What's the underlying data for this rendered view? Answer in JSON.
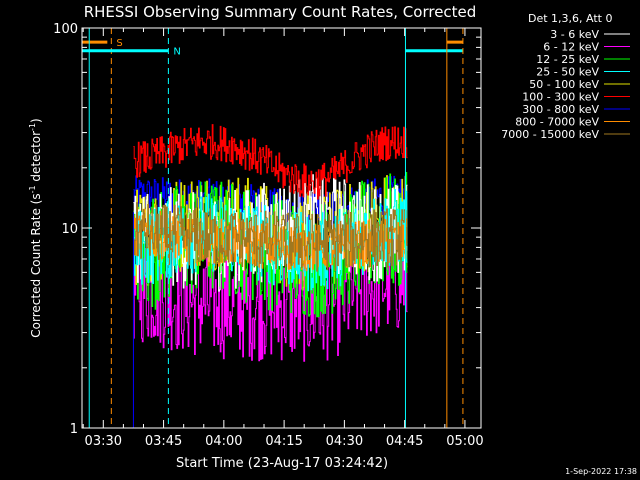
{
  "chart_data": {
    "type": "line",
    "title": "RHESSI Observing Summary Count Rates, Corrected",
    "xlabel": "Start Time (23-Aug-17 03:24:42)",
    "ylabel_main": "Corrected Count Rate (s",
    "ylabel_sup1": "-1",
    "ylabel_mid": " detector",
    "ylabel_sup2": "-1",
    "ylabel_end": ")",
    "yscale": "log",
    "ylim": [
      1,
      100
    ],
    "xlim": [
      "03:24:42",
      "05:04:00"
    ],
    "xlim_minutes": [
      204.7,
      304.0
    ],
    "x_ticks": [
      {
        "label": "03:30",
        "minutes": 210
      },
      {
        "label": "03:45",
        "minutes": 225
      },
      {
        "label": "04:00",
        "minutes": 240
      },
      {
        "label": "04:15",
        "minutes": 255
      },
      {
        "label": "04:30",
        "minutes": 270
      },
      {
        "label": "04:45",
        "minutes": 285
      },
      {
        "label": "05:00",
        "minutes": 300
      }
    ],
    "y_ticks": [
      {
        "label": "1",
        "value": 1
      },
      {
        "label": "10",
        "value": 10
      },
      {
        "label": "100",
        "value": 100
      }
    ],
    "legend_title": "Det 1,3,6, Att 0",
    "legend_position": "outside-right",
    "data_start_minutes": 217.5,
    "data_end_minutes": 285.5,
    "series": [
      {
        "name": "3 - 6 keV",
        "color": "#ffffff",
        "base": [
          9.5,
          8.5,
          10.5,
          9.5
        ],
        "noise": 0.25
      },
      {
        "name": "6 - 12 keV",
        "color": "#ff00ff",
        "base": [
          5.0,
          4.2,
          4.0,
          5.5
        ],
        "noise": 0.28
      },
      {
        "name": "12 - 25 keV",
        "color": "#00ff00",
        "base": [
          7.5,
          9.0,
          7.0,
          9.5
        ],
        "noise": 0.3
      },
      {
        "name": "25 - 50 keV",
        "color": "#00ffff",
        "base": [
          8.0,
          9.5,
          7.5,
          10.0
        ],
        "noise": 0.2
      },
      {
        "name": "50 - 100 keV",
        "color": "#e0e000",
        "base": [
          9.0,
          11.0,
          8.5,
          11.0
        ],
        "noise": 0.25
      },
      {
        "name": "100 - 300 keV",
        "color": "#ff0000",
        "base": [
          22.0,
          27.0,
          17.0,
          27.0
        ],
        "noise": 0.09
      },
      {
        "name": "300 - 800 keV",
        "color": "#0000ff",
        "base": [
          14.5,
          14.0,
          12.0,
          14.5
        ],
        "noise": 0.1
      },
      {
        "name": "800 - 7000 keV",
        "color": "#ff8c00",
        "base": [
          9.5,
          8.5,
          8.0,
          8.5
        ],
        "noise": 0.12
      },
      {
        "name": "7000 - 15000 keV",
        "color": "#a07820",
        "base": [
          9.5,
          9.0,
          8.5,
          9.0
        ],
        "noise": 0.15
      }
    ],
    "base_minutes": [
      217.5,
      236.0,
      262.0,
      282.5
    ],
    "markers": [
      {
        "label": "S",
        "color": "#ff8c00",
        "line_minutes": 212.0,
        "style": "dashed",
        "bar_from": 204.7,
        "bar_to": 211.0,
        "bar_value": 85
      },
      {
        "label": "N",
        "color": "#00ffff",
        "line_minutes": 226.2,
        "style": "dashed",
        "bar_from": 204.7,
        "bar_to": 226.2,
        "bar_value": 77
      },
      {
        "label": "",
        "color": "#00ffff",
        "line_minutes": 285.2,
        "style": "solid",
        "bar_from": 285.2,
        "bar_to": 299.5,
        "bar_value": 77
      },
      {
        "label": "",
        "color": "#ff8c00",
        "line_minutes": 295.5,
        "style": "solid",
        "bar_from": 295.5,
        "bar_to": 299.5,
        "bar_value": 85
      },
      {
        "label": "",
        "color": "#ff8c00",
        "line_minutes": 299.5,
        "style": "dashed"
      },
      {
        "label": "",
        "color": "#00ffff",
        "line_minutes": 206.5,
        "style": "solid"
      }
    ],
    "timestamp": "1-Sep-2022 17:38"
  }
}
